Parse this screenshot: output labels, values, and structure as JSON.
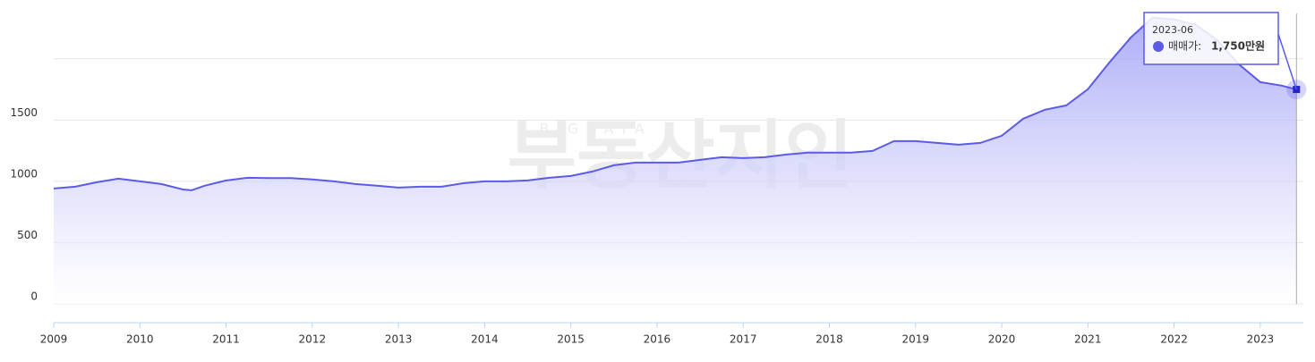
{
  "chart_data": {
    "type": "area",
    "watermark": {
      "small": "BIGDATA",
      "big": "부동산지인"
    },
    "x": [
      2009.0,
      2009.25,
      2009.5,
      2009.75,
      2010.0,
      2010.25,
      2010.5,
      2010.6,
      2010.75,
      2011.0,
      2011.25,
      2011.5,
      2011.75,
      2012.0,
      2012.25,
      2012.5,
      2012.75,
      2013.0,
      2013.25,
      2013.5,
      2013.75,
      2014.0,
      2014.25,
      2014.5,
      2014.75,
      2015.0,
      2015.25,
      2015.5,
      2015.75,
      2016.0,
      2016.25,
      2016.5,
      2016.75,
      2017.0,
      2017.25,
      2017.5,
      2017.75,
      2018.0,
      2018.25,
      2018.5,
      2018.75,
      2019.0,
      2019.25,
      2019.5,
      2019.75,
      2020.0,
      2020.25,
      2020.5,
      2020.75,
      2021.0,
      2021.25,
      2021.5,
      2021.75,
      2022.0,
      2022.25,
      2022.5,
      2022.75,
      2023.0,
      2023.25,
      2023.42
    ],
    "series": [
      {
        "name": "매매가",
        "color": "#5b5be8",
        "values": [
          942,
          956,
          993,
          1022,
          1000,
          978,
          934,
          927,
          964,
          1007,
          1029,
          1026,
          1026,
          1015,
          1000,
          978,
          964,
          949,
          956,
          956,
          985,
          1000,
          1000,
          1007,
          1029,
          1044,
          1080,
          1131,
          1153,
          1153,
          1153,
          1175,
          1197,
          1190,
          1197,
          1219,
          1234,
          1234,
          1234,
          1248,
          1328,
          1328,
          1314,
          1299,
          1314,
          1372,
          1511,
          1584,
          1620,
          1752,
          1971,
          2175,
          2336,
          2321,
          2277,
          2153,
          1956,
          1810,
          1781,
          1750
        ]
      }
    ],
    "xlim": [
      2009,
      2023.5
    ],
    "xticks": [
      2009,
      2010,
      2011,
      2012,
      2013,
      2014,
      2015,
      2016,
      2017,
      2018,
      2019,
      2020,
      2021,
      2022,
      2023
    ],
    "ylim": [
      0,
      2480
    ],
    "yticks": [
      0,
      500,
      1000,
      1500,
      {
        "value": 2000,
        "label": null
      }
    ],
    "grid": true,
    "tooltip": {
      "x_label": "2023-06",
      "label": "매매가:",
      "value": "1,750만원"
    }
  }
}
